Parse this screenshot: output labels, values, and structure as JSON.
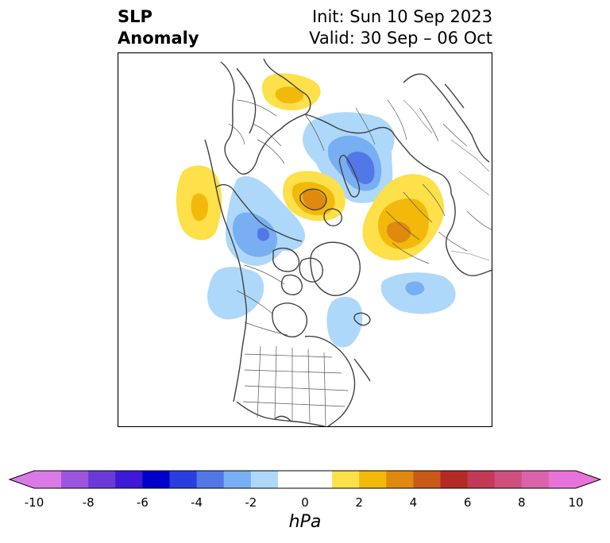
{
  "title": {
    "left_line1": "SLP",
    "left_line2": "Anomaly",
    "right_line1": "Init: Sun 10 Sep 2023",
    "right_line2": "Valid: 30 Sep – 06 Oct"
  },
  "map": {
    "projection": "north-polar-stereographic",
    "features": [
      "coastlines",
      "country-borders",
      "us-state-borders",
      "canada-province-borders"
    ],
    "anomalies": [
      {
        "region": "Scandinavia",
        "sign": "positive",
        "peak_hpa": 3
      },
      {
        "region": "Northwest Russia / Barents",
        "sign": "negative",
        "peak_hpa": -5
      },
      {
        "region": "Central Siberia",
        "sign": "positive",
        "peak_hpa": 5
      },
      {
        "region": "Siberia / Kara Sea",
        "sign": "positive",
        "peak_hpa": 5
      },
      {
        "region": "Bering Sea / Alaska",
        "sign": "positive",
        "peak_hpa": 3
      },
      {
        "region": "Beaufort Sea / Chukchi",
        "sign": "negative",
        "peak_hpa": -4
      },
      {
        "region": "Canadian Arctic",
        "sign": "negative",
        "peak_hpa": -2
      },
      {
        "region": "Western Canada / Gulf of Alaska",
        "sign": "negative",
        "peak_hpa": -2
      },
      {
        "region": "North Atlantic",
        "sign": "negative",
        "peak_hpa": -3
      },
      {
        "region": "Eastern Canada / Hudson Bay",
        "sign": "negative",
        "peak_hpa": -2
      }
    ]
  },
  "colorbar": {
    "label": "hPa",
    "ticks": [
      "-10",
      "-8",
      "-6",
      "-4",
      "-2",
      "0",
      "2",
      "4",
      "6",
      "8",
      "10"
    ],
    "bounds": [
      -10,
      -9,
      -8,
      -7,
      -6,
      -5,
      -4,
      -3,
      -2,
      -1,
      1,
      2,
      3,
      4,
      5,
      6,
      7,
      8,
      9,
      10
    ],
    "extend": "both",
    "colors": [
      "#d97ae6",
      "#9b55df",
      "#6a3ad8",
      "#3e19d6",
      "#0000cd",
      "#2a3ee0",
      "#5278e8",
      "#78aef2",
      "#aed8fa",
      "#ffffff",
      "#fde04a",
      "#f2b90b",
      "#e0890f",
      "#c95a17",
      "#b42a26",
      "#c23a55",
      "#cf4f7f",
      "#db63ab",
      "#e873d8"
    ]
  }
}
